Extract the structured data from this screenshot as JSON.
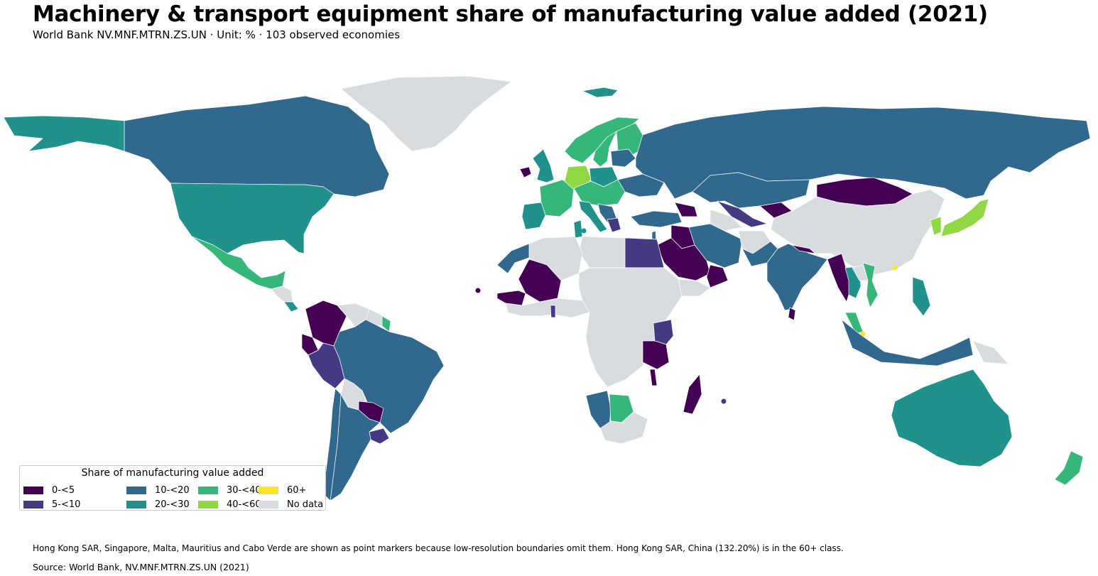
{
  "title": "Machinery & transport equipment share of manufacturing value added (2021)",
  "subtitle": "World Bank NV.MNF.MTRN.ZS.UN · Unit: % · 103 observed economies",
  "legend": {
    "title": "Share of manufacturing value added",
    "classes": [
      {
        "label": "0-<5",
        "color": "#440154"
      },
      {
        "label": "5-<10",
        "color": "#443983"
      },
      {
        "label": "10-<20",
        "color": "#31688e"
      },
      {
        "label": "20-<30",
        "color": "#21918c"
      },
      {
        "label": "30-<40",
        "color": "#35b779"
      },
      {
        "label": "40-<60",
        "color": "#90d743"
      },
      {
        "label": "60+",
        "color": "#fde725"
      },
      {
        "label": "No data",
        "color": "#d9dcdf"
      }
    ]
  },
  "note": "Hong Kong SAR, Singapore, Malta, Mauritius and Cabo Verde are shown as point markers because low-resolution boundaries omit them. Hong Kong SAR, China (132.20%) is in the 60+ class.",
  "source": "Source: World Bank, NV.MNF.MTRN.ZS.UN (2021)",
  "regions": [
    {
      "name": "Greenland",
      "class": "No data"
    },
    {
      "name": "Canada",
      "class": "10-<20"
    },
    {
      "name": "Alaska",
      "class": "20-<30"
    },
    {
      "name": "United States",
      "class": "20-<30"
    },
    {
      "name": "Mexico",
      "class": "30-<40"
    },
    {
      "name": "Central America",
      "class": "No data"
    },
    {
      "name": "Costa Rica",
      "class": "20-<30"
    },
    {
      "name": "Colombia",
      "class": "0-<5"
    },
    {
      "name": "Ecuador",
      "class": "0-<5"
    },
    {
      "name": "Peru",
      "class": "5-<10"
    },
    {
      "name": "Venezuela",
      "class": "No data"
    },
    {
      "name": "Guiana",
      "class": "No data"
    },
    {
      "name": "Suriname",
      "class": "30-<40"
    },
    {
      "name": "Brazil",
      "class": "10-<20"
    },
    {
      "name": "Bolivia",
      "class": "No data"
    },
    {
      "name": "Paraguay",
      "class": "0-<5"
    },
    {
      "name": "Uruguay",
      "class": "5-<10"
    },
    {
      "name": "Argentina",
      "class": "10-<20"
    },
    {
      "name": "Chile",
      "class": "10-<20"
    },
    {
      "name": "Iceland",
      "class": "20-<30"
    },
    {
      "name": "Ireland",
      "class": "0-<5"
    },
    {
      "name": "United Kingdom",
      "class": "20-<30"
    },
    {
      "name": "Norway",
      "class": "30-<40"
    },
    {
      "name": "Sweden",
      "class": "30-<40"
    },
    {
      "name": "Finland",
      "class": "30-<40"
    },
    {
      "name": "France",
      "class": "30-<40"
    },
    {
      "name": "Iberia",
      "class": "20-<30"
    },
    {
      "name": "Germany",
      "class": "40-<60"
    },
    {
      "name": "Poland",
      "class": "20-<30"
    },
    {
      "name": "Central Europe",
      "class": "30-<40"
    },
    {
      "name": "Italy",
      "class": "20-<30"
    },
    {
      "name": "Balkans",
      "class": "10-<20"
    },
    {
      "name": "Greece",
      "class": "5-<10"
    },
    {
      "name": "Ukraine",
      "class": "10-<20"
    },
    {
      "name": "Baltics",
      "class": "10-<20"
    },
    {
      "name": "Russia",
      "class": "10-<20"
    },
    {
      "name": "Kazakhstan",
      "class": "10-<20"
    },
    {
      "name": "Turkey",
      "class": "10-<20"
    },
    {
      "name": "Caucasus",
      "class": "0-<5"
    },
    {
      "name": "Uzbekistan",
      "class": "5-<10"
    },
    {
      "name": "Kyrgyzstan",
      "class": "0-<5"
    },
    {
      "name": "Turkmenistan",
      "class": "No data"
    },
    {
      "name": "Mongolia",
      "class": "0-<5"
    },
    {
      "name": "China",
      "class": "No data"
    },
    {
      "name": "Japan",
      "class": "40-<60"
    },
    {
      "name": "Korea",
      "class": "40-<60"
    },
    {
      "name": "Iran",
      "class": "10-<20"
    },
    {
      "name": "Iraq",
      "class": "0-<5"
    },
    {
      "name": "Saudi Arabia",
      "class": "0-<5"
    },
    {
      "name": "Oman",
      "class": "0-<5"
    },
    {
      "name": "Yemen",
      "class": "No data"
    },
    {
      "name": "Israel",
      "class": "10-<20"
    },
    {
      "name": "Egypt",
      "class": "5-<10"
    },
    {
      "name": "Libya",
      "class": "No data"
    },
    {
      "name": "Algeria",
      "class": "No data"
    },
    {
      "name": "Tunisia",
      "class": "20-<30"
    },
    {
      "name": "Morocco",
      "class": "10-<20"
    },
    {
      "name": "Mali",
      "class": "0-<5"
    },
    {
      "name": "Senegal",
      "class": "0-<5"
    },
    {
      "name": "West Africa",
      "class": "No data"
    },
    {
      "name": "Central Africa",
      "class": "No data"
    },
    {
      "name": "Ghana",
      "class": "5-<10"
    },
    {
      "name": "Kenya",
      "class": "5-<10"
    },
    {
      "name": "Tanzania",
      "class": "0-<5"
    },
    {
      "name": "Malawi",
      "class": "0-<5"
    },
    {
      "name": "Madagascar",
      "class": "0-<5"
    },
    {
      "name": "Namibia",
      "class": "10-<20"
    },
    {
      "name": "Botswana",
      "class": "30-<40"
    },
    {
      "name": "South Africa",
      "class": "No data"
    },
    {
      "name": "Afghanistan",
      "class": "No data"
    },
    {
      "name": "Pakistan",
      "class": "10-<20"
    },
    {
      "name": "India",
      "class": "10-<20"
    },
    {
      "name": "Nepal",
      "class": "0-<5"
    },
    {
      "name": "Sri Lanka",
      "class": "0-<5"
    },
    {
      "name": "Myanmar",
      "class": "0-<5"
    },
    {
      "name": "Thailand",
      "class": "20-<30"
    },
    {
      "name": "Vietnam",
      "class": "30-<40"
    },
    {
      "name": "Laos",
      "class": "No data"
    },
    {
      "name": "Malaysia",
      "class": "30-<40"
    },
    {
      "name": "Philippines",
      "class": "20-<30"
    },
    {
      "name": "Indonesia",
      "class": "10-<20"
    },
    {
      "name": "Papua New Guinea",
      "class": "No data"
    },
    {
      "name": "Australia",
      "class": "20-<30"
    },
    {
      "name": "New Zealand",
      "class": "30-<40"
    }
  ],
  "point_markers": [
    {
      "name": "Hong Kong SAR",
      "class": "60+"
    },
    {
      "name": "Singapore",
      "class": "60+"
    },
    {
      "name": "Malta",
      "class": "20-<30"
    },
    {
      "name": "Mauritius",
      "class": "5-<10"
    },
    {
      "name": "Cabo Verde",
      "class": "0-<5"
    }
  ]
}
